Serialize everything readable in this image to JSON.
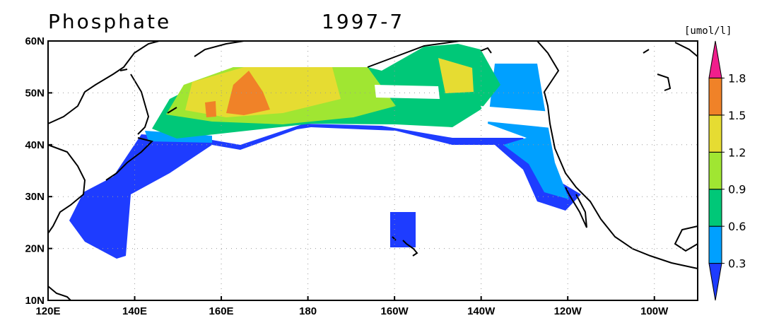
{
  "header": {
    "title": "Phosphate",
    "date": "1997-7",
    "unit": "[umol/l]"
  },
  "axes": {
    "x_labels": [
      "120E",
      "140E",
      "160E",
      "180",
      "160W",
      "140W",
      "120W",
      "100W"
    ],
    "y_labels": [
      "10N",
      "20N",
      "30N",
      "40N",
      "50N",
      "60N"
    ]
  },
  "colorbar": {
    "ticks": [
      0.3,
      0.6,
      0.9,
      1.2,
      1.5,
      1.8
    ],
    "colors": [
      "#1e3cff",
      "#00a0ff",
      "#00c878",
      "#a0e632",
      "#e6dc32",
      "#f08228",
      "#f01e8c"
    ]
  }
}
